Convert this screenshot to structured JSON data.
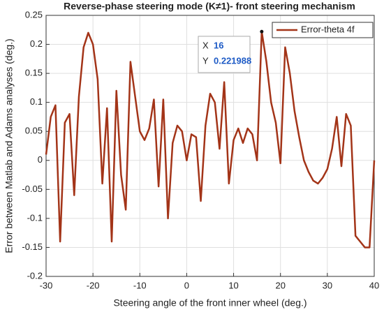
{
  "chart_data": {
    "type": "line",
    "title": "Reverse-phase steering mode (K≠1)- front steering mechanism",
    "x_label": "Steering angle of the front inner wheel (deg.)",
    "y_label": "Error between Matlab and Adams analyses (deg.)",
    "x": [
      -30,
      -29,
      -28,
      -27,
      -26,
      -25,
      -24,
      -23,
      -22,
      -21,
      -20,
      -19,
      -18,
      -17,
      -16,
      -15,
      -14,
      -13,
      -12,
      -11,
      -10,
      -9,
      -8,
      -7,
      -6,
      -5,
      -4,
      -3,
      -2,
      -1,
      0,
      1,
      2,
      3,
      4,
      5,
      6,
      7,
      8,
      9,
      10,
      11,
      12,
      13,
      14,
      15,
      16,
      17,
      18,
      19,
      20,
      21,
      22,
      23,
      24,
      25,
      26,
      27,
      28,
      29,
      30,
      31,
      32,
      33,
      34,
      35,
      36,
      37,
      38,
      39,
      40
    ],
    "series": [
      {
        "name": "Error-theta 4f",
        "color": "#a33418",
        "values": [
          0.01,
          0.075,
          0.095,
          -0.14,
          0.065,
          0.08,
          -0.06,
          0.11,
          0.195,
          0.22,
          0.2,
          0.14,
          -0.04,
          0.09,
          -0.14,
          0.12,
          -0.025,
          -0.085,
          0.17,
          0.11,
          0.05,
          0.035,
          0.055,
          0.105,
          -0.045,
          0.105,
          -0.1,
          0.03,
          0.06,
          0.05,
          0.0,
          0.045,
          0.04,
          -0.07,
          0.06,
          0.115,
          0.1,
          0.02,
          0.135,
          -0.04,
          0.035,
          0.055,
          0.03,
          0.055,
          0.045,
          0.0,
          0.221988,
          0.17,
          0.1,
          0.065,
          -0.005,
          0.195,
          0.15,
          0.085,
          0.04,
          0.0,
          -0.02,
          -0.035,
          -0.04,
          -0.03,
          -0.015,
          0.02,
          0.075,
          -0.01,
          0.08,
          0.06,
          -0.13,
          -0.14,
          -0.15,
          -0.15,
          0.0
        ]
      }
    ],
    "xlim": [
      -30,
      40
    ],
    "ylim": [
      -0.2,
      0.25
    ],
    "xticks": [
      -30,
      -20,
      -10,
      0,
      10,
      20,
      30,
      40
    ],
    "yticks": [
      -0.2,
      -0.15,
      -0.1,
      -0.05,
      0,
      0.05,
      0.1,
      0.15,
      0.2,
      0.25
    ],
    "grid": true,
    "legend": "top-right",
    "datatip": {
      "x_label": "X",
      "x": 16,
      "y_label": "Y",
      "y": 0.221988
    }
  }
}
